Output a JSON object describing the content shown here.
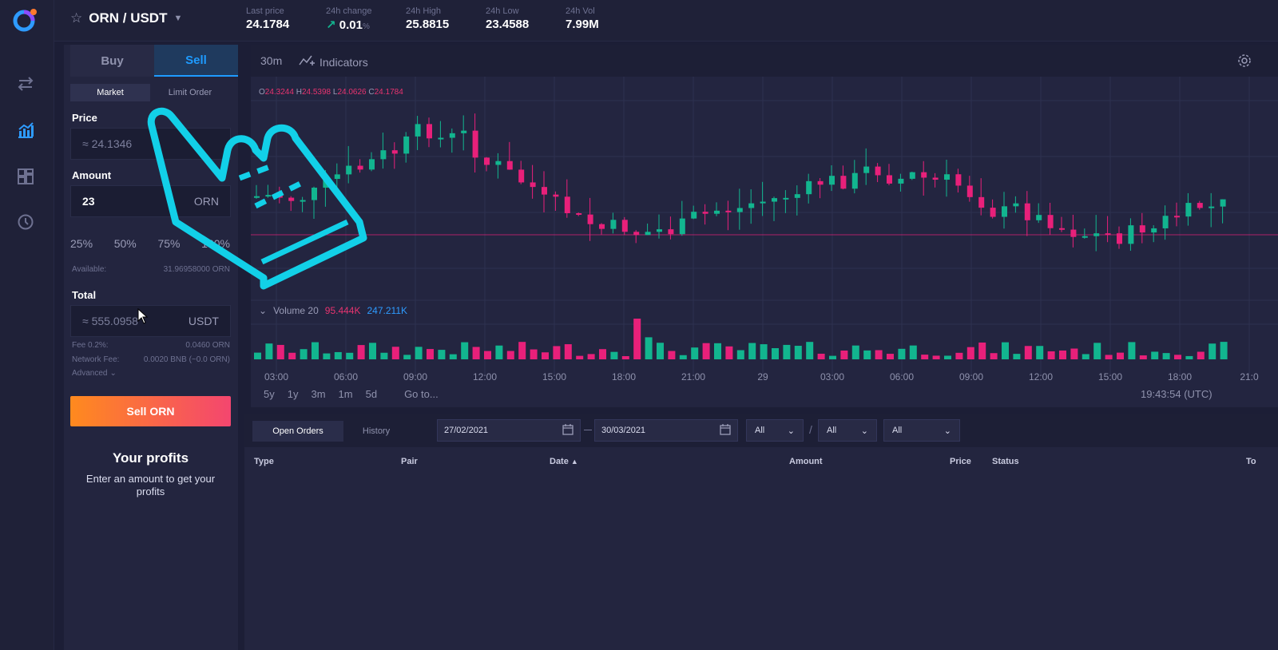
{
  "header": {
    "pair": "ORN / USDT",
    "stats": [
      {
        "label": "Last price",
        "value": "24.1784"
      },
      {
        "label": "24h change",
        "value": "0.01",
        "unit": "%"
      },
      {
        "label": "24h High",
        "value": "25.8815"
      },
      {
        "label": "24h Low",
        "value": "23.4588"
      },
      {
        "label": "24h Vol",
        "value": "7.99M"
      }
    ]
  },
  "trade": {
    "buy_tab": "Buy",
    "sell_tab": "Sell",
    "market": "Market",
    "limit": "Limit Order",
    "price_label": "Price",
    "price_placeholder": "≈ 24.1346",
    "amount_label": "Amount",
    "amount_value": "23",
    "amount_suffix": "ORN",
    "pct": [
      "25%",
      "50%",
      "75%",
      "100%"
    ],
    "available_label": "Available:",
    "available_value": "31.96958000 ORN",
    "total_label": "Total",
    "total_value": "≈ 555.0958",
    "total_suffix": "USDT",
    "fee_label": "Fee 0.2%:",
    "fee_value": "0.0460 ORN",
    "network_fee_label": "Network Fee:",
    "network_fee_value": "0.0020 BNB (~0.0 ORN)",
    "advanced": "Advanced",
    "sell_button": "Sell ORN",
    "profits_title": "Your profits",
    "profits_text": "Enter an amount to get your profits"
  },
  "chart": {
    "interval": "30m",
    "indicators": "Indicators",
    "ohlc": {
      "o": "24.3244",
      "h": "24.5398",
      "l": "24.0626",
      "c": "24.1784"
    },
    "volume_label": "Volume 20",
    "volume_v1": "95.444K",
    "volume_v2": "247.211K",
    "time_ticks": [
      "03:00",
      "06:00",
      "09:00",
      "12:00",
      "15:00",
      "18:00",
      "21:00",
      "29",
      "03:00",
      "06:00",
      "09:00",
      "12:00",
      "15:00",
      "18:00",
      "21:0"
    ],
    "ranges": [
      "5y",
      "1y",
      "3m",
      "1m",
      "5d"
    ],
    "goto": "Go to...",
    "clock": "19:43:54 (UTC)",
    "colors": {
      "up": "#12b58f",
      "down": "#e8207a"
    }
  },
  "orders": {
    "tab_open": "Open Orders",
    "tab_history": "History",
    "date_from": "27/02/2021",
    "date_to": "30/03/2021",
    "filters": [
      "All",
      "All",
      "All"
    ],
    "columns": [
      "Type",
      "Pair",
      "Date",
      "Amount",
      "Price",
      "Status",
      "To"
    ]
  }
}
